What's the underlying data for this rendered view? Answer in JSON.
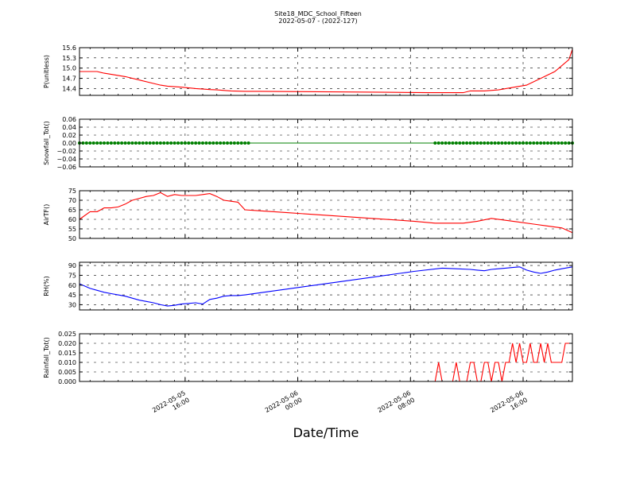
{
  "title": "Site18_MDC_School_Fifteen",
  "subtitle": "2022-05-07 - (2022-127)",
  "xlabel": "Date/Time",
  "x_ticks": [
    {
      "value": 4.75,
      "label": [
        "2022-05-05",
        "16:00"
      ]
    },
    {
      "value": 12.75,
      "label": [
        "2022-05-06",
        "00:00"
      ]
    },
    {
      "value": 20.75,
      "label": [
        "2022-05-06",
        "08:00"
      ]
    },
    {
      "value": 28.75,
      "label": [
        "2022-05-06",
        "16:00"
      ]
    }
  ],
  "chart_data": [
    {
      "type": "line",
      "ylabel": "P(unitless)",
      "ylim": [
        14.2,
        15.6
      ],
      "yticks": [
        14.4,
        14.7,
        15.0,
        15.3,
        15.6
      ],
      "ytick_labels": [
        "14.4",
        "14.7",
        "15.0",
        "15.3",
        "15.6"
      ],
      "grid": true,
      "color": "#ff0000",
      "x": [
        -2.75,
        -1.5,
        -1.0,
        0.5,
        1.5,
        2.5,
        3.0,
        3.5,
        4.5,
        5.5,
        6.5,
        7.0,
        8.0,
        9.0,
        10.0,
        13.0,
        16.0,
        19.0,
        22.0,
        24.5,
        25.0,
        26.0,
        27.0,
        28.0,
        29.0,
        30.0,
        31.0,
        32.0,
        32.25
      ],
      "y": [
        14.9,
        14.9,
        14.85,
        14.75,
        14.65,
        14.55,
        14.5,
        14.47,
        14.44,
        14.4,
        14.37,
        14.36,
        14.33,
        14.32,
        14.32,
        14.31,
        14.3,
        14.29,
        14.28,
        14.28,
        14.33,
        14.33,
        14.36,
        14.43,
        14.5,
        14.7,
        14.9,
        15.25,
        15.55
      ]
    },
    {
      "type": "scatter",
      "ylabel": "Snowfall_Tot()",
      "ylim": [
        -0.06,
        0.06
      ],
      "yticks": [
        -0.06,
        -0.04,
        -0.02,
        0.0,
        0.02,
        0.04,
        0.06
      ],
      "ytick_labels": [
        "−0.06",
        "−0.04",
        "−0.02",
        "0.00",
        "0.02",
        "0.04",
        "0.06"
      ],
      "grid": true,
      "color": "#008000",
      "line_x": [
        -2.75,
        32.25
      ],
      "line_y": [
        0,
        0
      ],
      "marker_ranges": [
        [
          -2.75,
          9.25
        ],
        [
          22.5,
          32.25
        ]
      ],
      "marker_step": 0.25
    },
    {
      "type": "line",
      "ylabel": "AirTF()",
      "ylim": [
        50,
        75
      ],
      "yticks": [
        50,
        55,
        60,
        65,
        70,
        75
      ],
      "ytick_labels": [
        "50",
        "55",
        "60",
        "65",
        "70",
        "75"
      ],
      "grid": true,
      "color": "#ff0000",
      "x": [
        -2.75,
        -2.0,
        -1.5,
        -1.0,
        -0.5,
        0.0,
        0.5,
        1.0,
        1.5,
        2.0,
        2.5,
        3.0,
        3.5,
        4.0,
        4.5,
        5.0,
        5.5,
        6.0,
        6.5,
        7.0,
        7.5,
        8.0,
        8.5,
        9.0,
        10.0,
        12.0,
        15.0,
        18.0,
        21.0,
        22.5,
        23.5,
        24.5,
        25.5,
        26.5,
        27.5,
        28.5,
        29.5,
        30.5,
        31.5,
        32.25
      ],
      "y": [
        60,
        64,
        64,
        66,
        66,
        66.5,
        68,
        70,
        71,
        72,
        72.5,
        74,
        72,
        73,
        72.5,
        72.5,
        72.5,
        73,
        73.5,
        72,
        70,
        69.5,
        69,
        65,
        64.5,
        63.5,
        62,
        60.5,
        59,
        58,
        58,
        58,
        59,
        60.5,
        59.5,
        58.5,
        57.5,
        56.5,
        55.5,
        53
      ]
    },
    {
      "type": "line",
      "ylabel": "RH(%)",
      "ylim": [
        22,
        95
      ],
      "yticks": [
        30,
        45,
        60,
        75,
        90
      ],
      "ytick_labels": [
        "30",
        "45",
        "60",
        "75",
        "90"
      ],
      "grid": true,
      "color": "#0000ff",
      "x": [
        -2.75,
        -2.0,
        -1.5,
        -1.0,
        -0.5,
        0.0,
        0.5,
        1.0,
        1.5,
        2.0,
        2.5,
        3.0,
        3.5,
        4.0,
        4.5,
        5.0,
        5.5,
        6.0,
        6.5,
        7.0,
        7.5,
        8.0,
        8.5,
        9.0,
        12.0,
        15.0,
        18.0,
        21.0,
        23.0,
        24.0,
        25.0,
        25.5,
        26.0,
        26.5,
        27.0,
        27.5,
        28.0,
        28.5,
        29.0,
        29.5,
        30.0,
        30.5,
        31.0,
        31.5,
        32.25
      ],
      "y": [
        62,
        55,
        52,
        49,
        47,
        45,
        43,
        40,
        37,
        35,
        33,
        30,
        28,
        29,
        31,
        32,
        33,
        31,
        38,
        40,
        43,
        44,
        44,
        45,
        54,
        63,
        72,
        81,
        86,
        85,
        84,
        83,
        82,
        84,
        85,
        86,
        87,
        88,
        83,
        80,
        78,
        80,
        83,
        85,
        88
      ]
    },
    {
      "type": "line",
      "ylabel": "Rainfall_Tot()",
      "ylim": [
        0.0,
        0.025
      ],
      "yticks": [
        0.0,
        0.005,
        0.01,
        0.015,
        0.02,
        0.025
      ],
      "ytick_labels": [
        "0.000",
        "0.005",
        "0.010",
        "0.015",
        "0.020",
        "0.025"
      ],
      "grid": true,
      "color": "#ff0000",
      "x": [
        -2.75,
        22.5,
        22.75,
        23.0,
        23.75,
        24.0,
        24.25,
        24.5,
        24.75,
        25.0,
        25.25,
        25.5,
        25.75,
        26.0,
        26.25,
        26.5,
        26.75,
        27.0,
        27.25,
        27.5,
        27.75,
        28.0,
        28.25,
        28.5,
        28.75,
        29.0,
        29.25,
        29.5,
        29.75,
        30.0,
        30.25,
        30.5,
        30.75,
        31.0,
        31.25,
        31.5,
        31.75,
        32.0,
        32.25
      ],
      "y": [
        0,
        0,
        0.01,
        0,
        0,
        0.01,
        0,
        0,
        0,
        0.01,
        0.01,
        0,
        0,
        0.01,
        0.01,
        0,
        0.01,
        0.01,
        0,
        0.01,
        0.01,
        0.02,
        0.01,
        0.02,
        0.01,
        0.01,
        0.02,
        0.01,
        0.01,
        0.02,
        0.01,
        0.02,
        0.01,
        0.01,
        0.01,
        0.01,
        0.02,
        0.02,
        0.02
      ]
    }
  ]
}
